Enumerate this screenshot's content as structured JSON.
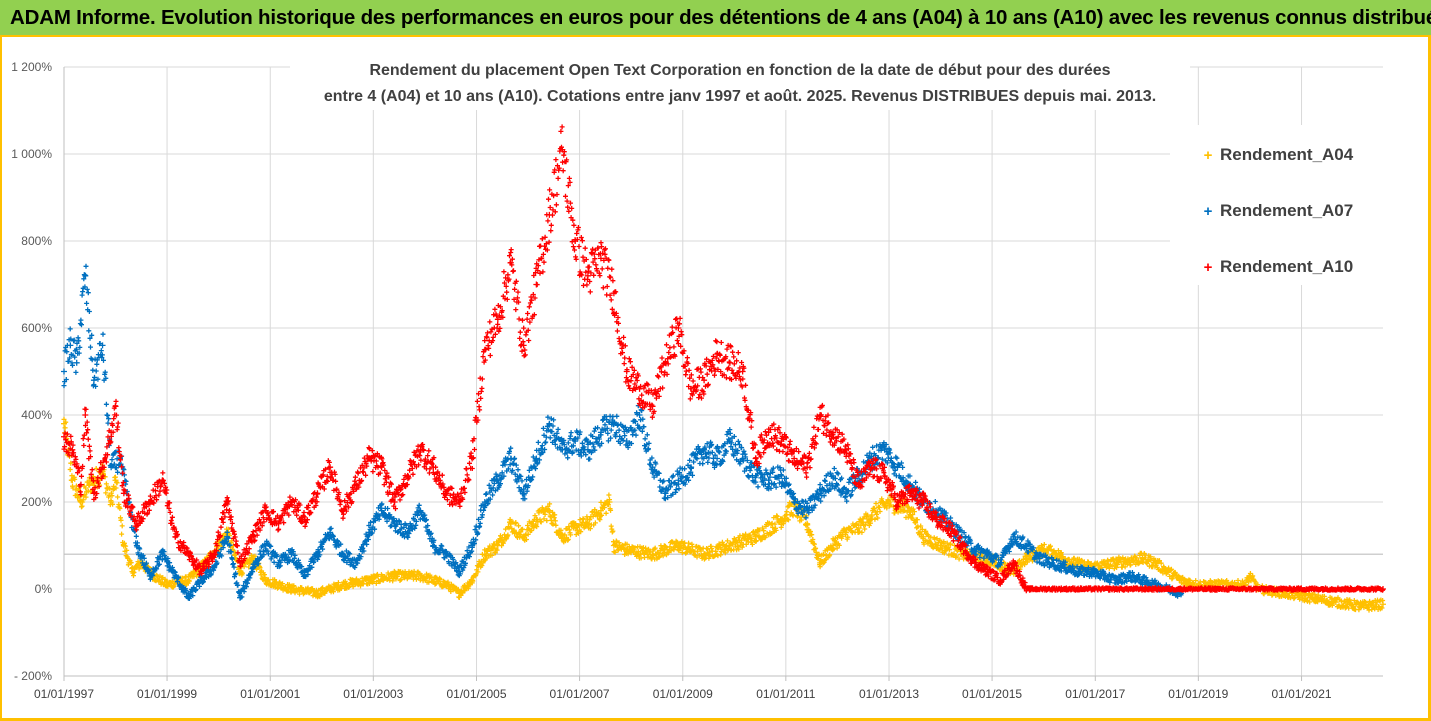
{
  "header": {
    "banner": "ADAM Informe. Evolution historique des performances en euros pour des détentions de 4 ans (A04) à 10 ans (A10) avec les revenus connus distribués"
  },
  "colors": {
    "banner_bg": "#92d050",
    "frame": "#ffc000",
    "A04": "#ffc000",
    "A07": "#0070c0",
    "A10": "#ff0000",
    "gridline": "#d9d9d9",
    "reference_line": "#bfbfbf"
  },
  "chart_data": {
    "type": "scatter",
    "title_line1": "Rendement du placement Open Text Corporation en fonction de la date de début pour des durées",
    "title_line2": "entre 4 (A04) et 10 ans (A10). Cotations entre janv 1997 et août. 2025. Revenus DISTRIBUES depuis mai. 2013.",
    "xlabel": "",
    "ylabel": "",
    "x_range": [
      "1997-01-01",
      "2022-08-01"
    ],
    "y_range": [
      -200,
      1200
    ],
    "y_unit": "%",
    "y_ticks": [
      -200,
      0,
      200,
      400,
      600,
      800,
      1000,
      1200
    ],
    "y_tick_labels": [
      "- 200%",
      "0%",
      "200%",
      "400%",
      "600%",
      "800%",
      "1 000%",
      "1 200%"
    ],
    "x_ticks": [
      "1997-01-01",
      "1999-01-01",
      "2001-01-01",
      "2003-01-01",
      "2005-01-01",
      "2007-01-01",
      "2009-01-01",
      "2011-01-01",
      "2013-01-01",
      "2015-01-01",
      "2017-01-01",
      "2019-01-01",
      "2021-01-01"
    ],
    "x_tick_labels": [
      "01/01/1997",
      "01/01/1999",
      "01/01/2001",
      "01/01/2003",
      "01/01/2005",
      "01/01/2007",
      "01/01/2009",
      "01/01/2011",
      "01/01/2013",
      "01/01/2015",
      "01/01/2017",
      "01/01/2019",
      "01/01/2021"
    ],
    "reference_line_y": 80,
    "grid": true,
    "legend_position": "right",
    "marker": "+",
    "series": [
      {
        "name": "Rendement_A04",
        "color": "#ffc000",
        "end": "2022-08-01",
        "points": [
          [
            "1997-01-01",
            380
          ],
          [
            "1997-03-01",
            250
          ],
          [
            "1997-05-01",
            200
          ],
          [
            "1997-07-01",
            240
          ],
          [
            "1997-10-01",
            270
          ],
          [
            "1997-12-01",
            200
          ],
          [
            "1998-01-01",
            250
          ],
          [
            "1998-03-01",
            100
          ],
          [
            "1998-05-01",
            40
          ],
          [
            "1998-07-01",
            60
          ],
          [
            "1998-10-01",
            30
          ],
          [
            "1999-01-01",
            10
          ],
          [
            "1999-06-01",
            20
          ],
          [
            "1999-10-01",
            60
          ],
          [
            "2000-01-01",
            100
          ],
          [
            "2000-03-01",
            130
          ],
          [
            "2000-06-01",
            40
          ],
          [
            "2000-09-01",
            70
          ],
          [
            "2000-12-01",
            20
          ],
          [
            "2001-06-01",
            0
          ],
          [
            "2001-12-01",
            -10
          ],
          [
            "2002-06-01",
            10
          ],
          [
            "2002-12-01",
            20
          ],
          [
            "2003-06-01",
            30
          ],
          [
            "2003-12-01",
            30
          ],
          [
            "2004-06-01",
            10
          ],
          [
            "2004-09-01",
            -10
          ],
          [
            "2004-12-01",
            20
          ],
          [
            "2005-03-01",
            80
          ],
          [
            "2005-06-01",
            100
          ],
          [
            "2005-09-01",
            150
          ],
          [
            "2005-12-01",
            120
          ],
          [
            "2006-03-01",
            160
          ],
          [
            "2006-06-01",
            180
          ],
          [
            "2006-09-01",
            120
          ],
          [
            "2006-12-01",
            140
          ],
          [
            "2007-03-01",
            150
          ],
          [
            "2007-06-01",
            180
          ],
          [
            "2007-08-01",
            200
          ],
          [
            "2007-09-01",
            100
          ],
          [
            "2007-12-01",
            90
          ],
          [
            "2008-06-01",
            80
          ],
          [
            "2008-12-01",
            100
          ],
          [
            "2009-06-01",
            80
          ],
          [
            "2009-12-01",
            100
          ],
          [
            "2010-06-01",
            120
          ],
          [
            "2010-12-01",
            160
          ],
          [
            "2011-03-01",
            190
          ],
          [
            "2011-06-01",
            150
          ],
          [
            "2011-09-01",
            60
          ],
          [
            "2011-12-01",
            100
          ],
          [
            "2012-03-01",
            130
          ],
          [
            "2012-06-01",
            140
          ],
          [
            "2012-09-01",
            170
          ],
          [
            "2013-01-01",
            200
          ],
          [
            "2013-06-01",
            180
          ],
          [
            "2013-09-01",
            120
          ],
          [
            "2014-01-01",
            100
          ],
          [
            "2014-06-01",
            80
          ],
          [
            "2014-12-01",
            70
          ],
          [
            "2015-06-01",
            40
          ],
          [
            "2015-09-01",
            70
          ],
          [
            "2016-01-01",
            90
          ],
          [
            "2016-04-01",
            80
          ],
          [
            "2016-08-01",
            60
          ],
          [
            "2016-12-01",
            50
          ],
          [
            "2017-06-01",
            60
          ],
          [
            "2017-12-01",
            70
          ],
          [
            "2018-03-01",
            60
          ],
          [
            "2018-09-01",
            20
          ],
          [
            "2019-01-01",
            10
          ],
          [
            "2019-06-01",
            10
          ],
          [
            "2019-12-01",
            10
          ],
          [
            "2020-01-01",
            30
          ],
          [
            "2020-03-01",
            0
          ],
          [
            "2020-09-01",
            -10
          ],
          [
            "2021-03-01",
            -20
          ],
          [
            "2021-09-01",
            -30
          ],
          [
            "2022-03-01",
            -40
          ],
          [
            "2022-08-01",
            -35
          ]
        ]
      },
      {
        "name": "Rendement_A07",
        "color": "#0070c0",
        "end": "2018-09-01",
        "points": [
          [
            "1997-01-01",
            500
          ],
          [
            "1997-02-15",
            560
          ],
          [
            "1997-04-01",
            520
          ],
          [
            "1997-06-01",
            720
          ],
          [
            "1997-08-01",
            480
          ],
          [
            "1997-10-01",
            560
          ],
          [
            "1997-12-01",
            280
          ],
          [
            "1998-02-01",
            300
          ],
          [
            "1998-04-01",
            200
          ],
          [
            "1998-06-01",
            100
          ],
          [
            "1998-09-01",
            30
          ],
          [
            "1998-12-01",
            80
          ],
          [
            "1999-03-01",
            30
          ],
          [
            "1999-06-01",
            -20
          ],
          [
            "1999-09-01",
            20
          ],
          [
            "1999-12-01",
            50
          ],
          [
            "2000-03-01",
            120
          ],
          [
            "2000-06-01",
            -20
          ],
          [
            "2000-09-01",
            50
          ],
          [
            "2000-12-01",
            100
          ],
          [
            "2001-03-01",
            60
          ],
          [
            "2001-06-01",
            80
          ],
          [
            "2001-09-01",
            30
          ],
          [
            "2001-12-01",
            80
          ],
          [
            "2002-03-01",
            130
          ],
          [
            "2002-06-01",
            80
          ],
          [
            "2002-09-01",
            60
          ],
          [
            "2002-12-01",
            130
          ],
          [
            "2003-03-01",
            180
          ],
          [
            "2003-06-01",
            150
          ],
          [
            "2003-09-01",
            130
          ],
          [
            "2003-12-01",
            180
          ],
          [
            "2004-03-01",
            100
          ],
          [
            "2004-06-01",
            80
          ],
          [
            "2004-09-01",
            40
          ],
          [
            "2004-12-01",
            100
          ],
          [
            "2005-03-01",
            200
          ],
          [
            "2005-06-01",
            250
          ],
          [
            "2005-09-01",
            300
          ],
          [
            "2005-12-01",
            220
          ],
          [
            "2006-03-01",
            300
          ],
          [
            "2006-06-01",
            380
          ],
          [
            "2006-09-01",
            320
          ],
          [
            "2006-12-01",
            340
          ],
          [
            "2007-03-01",
            320
          ],
          [
            "2007-06-01",
            360
          ],
          [
            "2007-09-01",
            380
          ],
          [
            "2007-12-01",
            340
          ],
          [
            "2008-03-01",
            400
          ],
          [
            "2008-06-01",
            280
          ],
          [
            "2008-09-01",
            220
          ],
          [
            "2008-12-01",
            250
          ],
          [
            "2009-03-01",
            280
          ],
          [
            "2009-06-01",
            320
          ],
          [
            "2009-09-01",
            300
          ],
          [
            "2009-12-01",
            340
          ],
          [
            "2010-03-01",
            300
          ],
          [
            "2010-06-01",
            260
          ],
          [
            "2010-09-01",
            250
          ],
          [
            "2010-12-01",
            260
          ],
          [
            "2011-03-01",
            200
          ],
          [
            "2011-06-01",
            180
          ],
          [
            "2011-09-01",
            220
          ],
          [
            "2011-12-01",
            260
          ],
          [
            "2012-03-01",
            220
          ],
          [
            "2012-06-01",
            260
          ],
          [
            "2012-09-01",
            300
          ],
          [
            "2012-12-01",
            320
          ],
          [
            "2013-03-01",
            280
          ],
          [
            "2013-06-01",
            240
          ],
          [
            "2013-09-01",
            200
          ],
          [
            "2013-12-01",
            180
          ],
          [
            "2014-03-01",
            150
          ],
          [
            "2014-06-01",
            120
          ],
          [
            "2014-09-01",
            90
          ],
          [
            "2014-12-01",
            80
          ],
          [
            "2015-03-01",
            60
          ],
          [
            "2015-06-01",
            120
          ],
          [
            "2015-09-01",
            100
          ],
          [
            "2015-12-01",
            70
          ],
          [
            "2016-03-01",
            60
          ],
          [
            "2016-06-01",
            50
          ],
          [
            "2016-09-01",
            40
          ],
          [
            "2016-12-01",
            40
          ],
          [
            "2017-03-01",
            30
          ],
          [
            "2017-06-01",
            20
          ],
          [
            "2017-09-01",
            30
          ],
          [
            "2017-12-01",
            20
          ],
          [
            "2018-03-01",
            10
          ],
          [
            "2018-09-01",
            -10
          ]
        ]
      },
      {
        "name": "Rendement_A10",
        "color": "#ff0000",
        "end": "2022-08-01",
        "points": [
          [
            "1997-01-01",
            350
          ],
          [
            "1997-03-01",
            320
          ],
          [
            "1997-05-01",
            240
          ],
          [
            "1997-06-01",
            400
          ],
          [
            "1997-08-01",
            220
          ],
          [
            "1997-10-01",
            280
          ],
          [
            "1997-12-01",
            360
          ],
          [
            "1998-01-01",
            420
          ],
          [
            "1998-03-01",
            220
          ],
          [
            "1998-06-01",
            150
          ],
          [
            "1998-09-01",
            200
          ],
          [
            "1998-12-01",
            250
          ],
          [
            "1999-03-01",
            120
          ],
          [
            "1999-06-01",
            80
          ],
          [
            "1999-09-01",
            40
          ],
          [
            "1999-12-01",
            80
          ],
          [
            "2000-03-01",
            200
          ],
          [
            "2000-06-01",
            60
          ],
          [
            "2000-09-01",
            120
          ],
          [
            "2000-12-01",
            180
          ],
          [
            "2001-03-01",
            150
          ],
          [
            "2001-06-01",
            200
          ],
          [
            "2001-09-01",
            160
          ],
          [
            "2001-12-01",
            220
          ],
          [
            "2002-03-01",
            280
          ],
          [
            "2002-06-01",
            180
          ],
          [
            "2002-09-01",
            240
          ],
          [
            "2002-12-01",
            300
          ],
          [
            "2003-03-01",
            280
          ],
          [
            "2003-06-01",
            200
          ],
          [
            "2003-09-01",
            260
          ],
          [
            "2003-12-01",
            320
          ],
          [
            "2004-03-01",
            280
          ],
          [
            "2004-06-01",
            220
          ],
          [
            "2004-09-01",
            200
          ],
          [
            "2004-12-01",
            300
          ],
          [
            "2005-03-01",
            550
          ],
          [
            "2005-06-01",
            620
          ],
          [
            "2005-09-01",
            750
          ],
          [
            "2005-12-01",
            560
          ],
          [
            "2006-03-01",
            700
          ],
          [
            "2006-06-01",
            860
          ],
          [
            "2006-09-01",
            1010
          ],
          [
            "2006-12-01",
            800
          ],
          [
            "2007-03-01",
            720
          ],
          [
            "2007-06-01",
            760
          ],
          [
            "2007-09-01",
            680
          ],
          [
            "2007-12-01",
            500
          ],
          [
            "2008-03-01",
            460
          ],
          [
            "2008-06-01",
            420
          ],
          [
            "2008-09-01",
            520
          ],
          [
            "2008-12-01",
            600
          ],
          [
            "2009-03-01",
            460
          ],
          [
            "2009-06-01",
            480
          ],
          [
            "2009-09-01",
            540
          ],
          [
            "2009-12-01",
            520
          ],
          [
            "2010-03-01",
            500
          ],
          [
            "2010-06-01",
            300
          ],
          [
            "2010-09-01",
            360
          ],
          [
            "2010-12-01",
            340
          ],
          [
            "2011-03-01",
            300
          ],
          [
            "2011-06-01",
            280
          ],
          [
            "2011-09-01",
            400
          ],
          [
            "2011-12-01",
            360
          ],
          [
            "2012-03-01",
            320
          ],
          [
            "2012-06-01",
            240
          ],
          [
            "2012-09-01",
            280
          ],
          [
            "2012-12-01",
            260
          ],
          [
            "2013-03-01",
            200
          ],
          [
            "2013-06-01",
            220
          ],
          [
            "2013-09-01",
            200
          ],
          [
            "2013-12-01",
            160
          ],
          [
            "2014-03-01",
            140
          ],
          [
            "2014-06-01",
            100
          ],
          [
            "2014-09-01",
            60
          ],
          [
            "2014-12-01",
            40
          ],
          [
            "2015-03-01",
            20
          ],
          [
            "2015-06-01",
            60
          ],
          [
            "2015-09-01",
            0
          ],
          [
            "2016-06-01",
            0
          ],
          [
            "2017-06-01",
            0
          ],
          [
            "2018-06-01",
            0
          ],
          [
            "2019-06-01",
            0
          ],
          [
            "2020-06-01",
            0
          ],
          [
            "2021-06-01",
            0
          ],
          [
            "2022-08-01",
            0
          ]
        ]
      }
    ]
  },
  "legend": {
    "items": [
      {
        "label": "Rendement_A04",
        "color": "#ffc000"
      },
      {
        "label": "Rendement_A07",
        "color": "#0070c0"
      },
      {
        "label": "Rendement_A10",
        "color": "#ff0000"
      }
    ]
  }
}
